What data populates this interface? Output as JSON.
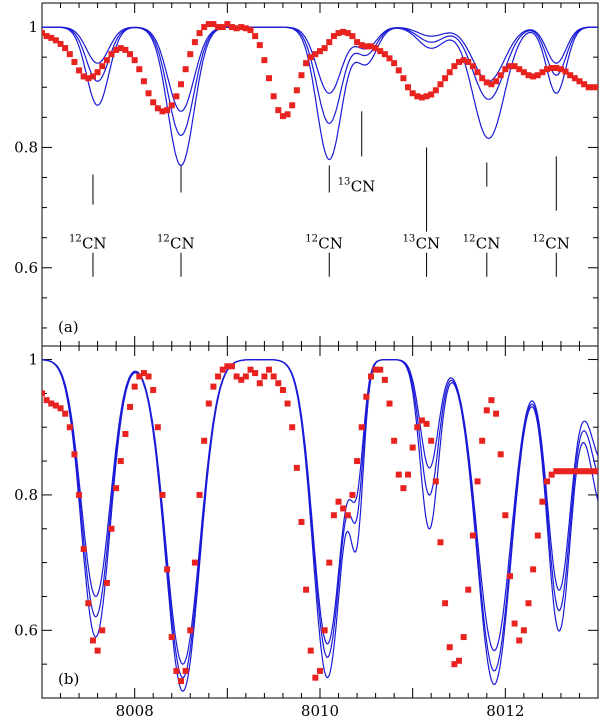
{
  "chart_data": [
    {
      "type": "line",
      "panel_label": "(a)",
      "xlim": [
        8007.0,
        8013.0
      ],
      "ylim": [
        0.47,
        1.04
      ],
      "xticks": [
        8007,
        8008,
        8009,
        8010,
        8011,
        8012,
        8013
      ],
      "xtick_labels": [],
      "yticks": [
        0.6,
        0.8,
        1.0
      ],
      "ytick_labels": [
        "0.6",
        "0.8",
        "1"
      ],
      "grid": false,
      "lines": [
        {
          "x": 8007.55,
          "y_top": 0.755,
          "y_bot": 0.705,
          "label_y": 0.64,
          "label_mass": "12",
          "label_species": "CN",
          "lower_top": 0.625,
          "lower_bot": 0.585
        },
        {
          "x": 8008.5,
          "y_top": 0.77,
          "y_bot": 0.725,
          "label_y": 0.64,
          "label_mass": "12",
          "label_species": "CN",
          "lower_top": 0.625,
          "lower_bot": 0.585
        },
        {
          "x": 8010.1,
          "y_top": 0.77,
          "y_bot": 0.725,
          "label_y": 0.64,
          "label_mass": "12",
          "label_species": "CN",
          "lower_top": 0.625,
          "lower_bot": 0.585
        },
        {
          "x": 8010.45,
          "y_top": 0.86,
          "y_bot": 0.785,
          "label_y": 0.735,
          "label_mass": "13",
          "label_species": "CN",
          "lower_top": null,
          "lower_bot": null,
          "x_label": 8010.45
        },
        {
          "x": 8011.15,
          "y_top": 0.8,
          "y_bot": 0.66,
          "label_y": 0.64,
          "label_mass": "13",
          "label_species": "CN",
          "lower_top": 0.625,
          "lower_bot": 0.585
        },
        {
          "x": 8011.8,
          "y_top": 0.775,
          "y_bot": 0.735,
          "label_y": 0.64,
          "label_mass": "12",
          "label_species": "CN",
          "lower_top": 0.625,
          "lower_bot": 0.585
        },
        {
          "x": 8012.55,
          "y_top": 0.785,
          "y_bot": 0.695,
          "label_y": 0.64,
          "label_mass": "12",
          "label_species": "CN",
          "lower_top": 0.625,
          "lower_bot": 0.585
        }
      ],
      "model_dips": [
        {
          "x": 8007.6,
          "w": 0.17,
          "d": [
            0.06,
            0.09,
            0.13
          ]
        },
        {
          "x": 8008.5,
          "w": 0.2,
          "d": [
            0.14,
            0.18,
            0.23
          ]
        },
        {
          "x": 8010.1,
          "w": 0.19,
          "d": [
            0.11,
            0.16,
            0.22
          ]
        },
        {
          "x": 8010.5,
          "w": 0.16,
          "d": [
            0.035,
            0.045,
            0.06
          ]
        },
        {
          "x": 8011.2,
          "w": 0.2,
          "d": [
            0.015,
            0.025,
            0.035
          ]
        },
        {
          "x": 8011.82,
          "w": 0.24,
          "d": [
            0.09,
            0.12,
            0.185
          ]
        },
        {
          "x": 8012.55,
          "w": 0.15,
          "d": [
            0.06,
            0.08,
            0.11
          ]
        }
      ],
      "model_baseline": 1.0,
      "obs": {
        "x": [
          8007.0,
          8007.05,
          8007.1,
          8007.15,
          8007.2,
          8007.25,
          8007.3,
          8007.35,
          8007.4,
          8007.45,
          8007.5,
          8007.55,
          8007.6,
          8007.65,
          8007.7,
          8007.75,
          8007.8,
          8007.85,
          8007.9,
          8007.95,
          8008.0,
          8008.05,
          8008.1,
          8008.15,
          8008.2,
          8008.25,
          8008.3,
          8008.35,
          8008.4,
          8008.45,
          8008.5,
          8008.55,
          8008.6,
          8008.65,
          8008.7,
          8008.75,
          8008.8,
          8008.85,
          8008.9,
          8008.95,
          8009.0,
          8009.05,
          8009.1,
          8009.15,
          8009.2,
          8009.25,
          8009.3,
          8009.35,
          8009.4,
          8009.45,
          8009.5,
          8009.55,
          8009.6,
          8009.65,
          8009.7,
          8009.75,
          8009.8,
          8009.85,
          8009.9,
          8009.95,
          8010.0,
          8010.05,
          8010.1,
          8010.15,
          8010.2,
          8010.25,
          8010.3,
          8010.35,
          8010.4,
          8010.45,
          8010.5,
          8010.55,
          8010.6,
          8010.65,
          8010.7,
          8010.75,
          8010.8,
          8010.85,
          8010.9,
          8010.95,
          8011.0,
          8011.05,
          8011.1,
          8011.15,
          8011.2,
          8011.25,
          8011.3,
          8011.35,
          8011.4,
          8011.45,
          8011.5,
          8011.55,
          8011.6,
          8011.65,
          8011.7,
          8011.75,
          8011.8,
          8011.85,
          8011.9,
          8011.95,
          8012.0,
          8012.05,
          8012.1,
          8012.15,
          8012.2,
          8012.25,
          8012.3,
          8012.35,
          8012.4,
          8012.45,
          8012.5,
          8012.55,
          8012.6,
          8012.65,
          8012.7,
          8012.75,
          8012.8,
          8012.85,
          8012.9,
          8012.95,
          8013.0
        ],
        "y": [
          0.99,
          0.985,
          0.982,
          0.978,
          0.972,
          0.965,
          0.955,
          0.942,
          0.928,
          0.918,
          0.915,
          0.918,
          0.925,
          0.935,
          0.945,
          0.955,
          0.962,
          0.965,
          0.962,
          0.955,
          0.945,
          0.93,
          0.91,
          0.89,
          0.875,
          0.865,
          0.86,
          0.862,
          0.87,
          0.885,
          0.905,
          0.93,
          0.955,
          0.975,
          0.99,
          1.0,
          1.005,
          1.005,
          1.0,
          1.0,
          1.005,
          1.0,
          0.998,
          1.0,
          0.998,
          0.995,
          0.985,
          0.97,
          0.945,
          0.915,
          0.885,
          0.862,
          0.852,
          0.855,
          0.87,
          0.895,
          0.92,
          0.94,
          0.95,
          0.955,
          0.96,
          0.965,
          0.975,
          0.985,
          0.99,
          0.992,
          0.99,
          0.985,
          0.975,
          0.97,
          0.968,
          0.968,
          0.965,
          0.96,
          0.955,
          0.948,
          0.94,
          0.928,
          0.915,
          0.9,
          0.89,
          0.885,
          0.883,
          0.885,
          0.888,
          0.895,
          0.905,
          0.915,
          0.925,
          0.935,
          0.942,
          0.945,
          0.942,
          0.935,
          0.925,
          0.915,
          0.908,
          0.905,
          0.91,
          0.92,
          0.93,
          0.935,
          0.935,
          0.93,
          0.925,
          0.92,
          0.918,
          0.92,
          0.925,
          0.93,
          0.932,
          0.932,
          0.93,
          0.926,
          0.92,
          0.915,
          0.91,
          0.905,
          0.9,
          0.9,
          0.9
        ]
      }
    },
    {
      "type": "line",
      "panel_label": "(b)",
      "xlim": [
        8007.0,
        8013.0
      ],
      "ylim": [
        0.5,
        1.02
      ],
      "xticks": [
        8007,
        8008,
        8009,
        8010,
        8011,
        8012,
        8013
      ],
      "xtick_labels": [
        "8008",
        "8010",
        "8012"
      ],
      "xtick_label_values": [
        8008,
        8010,
        8012
      ],
      "yticks": [
        0.6,
        0.8,
        1.0
      ],
      "ytick_labels": [
        "0.6",
        "0.8",
        "1"
      ],
      "grid": false,
      "model_dips": [
        {
          "x": 8007.58,
          "w": 0.22,
          "d": [
            0.35,
            0.38,
            0.41
          ]
        },
        {
          "x": 8008.52,
          "w": 0.26,
          "d": [
            0.45,
            0.47,
            0.49
          ]
        },
        {
          "x": 8010.08,
          "w": 0.22,
          "d": [
            0.42,
            0.44,
            0.47
          ]
        },
        {
          "x": 8010.4,
          "w": 0.1,
          "d": [
            0.15,
            0.18,
            0.22
          ]
        },
        {
          "x": 8011.18,
          "w": 0.14,
          "d": [
            0.16,
            0.2,
            0.25
          ]
        },
        {
          "x": 8011.88,
          "w": 0.26,
          "d": [
            0.43,
            0.46,
            0.48
          ]
        },
        {
          "x": 8012.58,
          "w": 0.18,
          "d": [
            0.34,
            0.37,
            0.4
          ]
        },
        {
          "x": 8013.05,
          "w": 0.2,
          "d": [
            0.15,
            0.18,
            0.22
          ]
        }
      ],
      "model_baseline": 1.0,
      "obs": {
        "x": [
          8007.0,
          8007.05,
          8007.1,
          8007.15,
          8007.2,
          8007.25,
          8007.3,
          8007.35,
          8007.4,
          8007.45,
          8007.5,
          8007.55,
          8007.6,
          8007.65,
          8007.7,
          8007.75,
          8007.8,
          8007.85,
          8007.9,
          8007.95,
          8008.0,
          8008.05,
          8008.1,
          8008.15,
          8008.2,
          8008.25,
          8008.3,
          8008.35,
          8008.4,
          8008.45,
          8008.5,
          8008.55,
          8008.6,
          8008.65,
          8008.7,
          8008.75,
          8008.8,
          8008.85,
          8008.9,
          8008.95,
          8009.0,
          8009.05,
          8009.1,
          8009.15,
          8009.2,
          8009.25,
          8009.3,
          8009.35,
          8009.4,
          8009.45,
          8009.5,
          8009.55,
          8009.6,
          8009.65,
          8009.7,
          8009.75,
          8009.8,
          8009.85,
          8009.9,
          8009.95,
          8010.0,
          8010.05,
          8010.1,
          8010.15,
          8010.2,
          8010.25,
          8010.3,
          8010.35,
          8010.4,
          8010.45,
          8010.5,
          8010.55,
          8010.6,
          8010.65,
          8010.7,
          8010.75,
          8010.8,
          8010.85,
          8010.9,
          8010.95,
          8011.0,
          8011.05,
          8011.1,
          8011.15,
          8011.2,
          8011.25,
          8011.3,
          8011.35,
          8011.4,
          8011.45,
          8011.5,
          8011.55,
          8011.6,
          8011.65,
          8011.7,
          8011.75,
          8011.8,
          8011.85,
          8011.9,
          8011.95,
          8012.0,
          8012.05,
          8012.1,
          8012.15,
          8012.2,
          8012.25,
          8012.3,
          8012.35,
          8012.4,
          8012.45,
          8012.5,
          8012.55,
          8012.6,
          8012.65,
          8012.7,
          8012.75,
          8012.8,
          8012.85,
          8012.9,
          8012.95,
          8013.0
        ],
        "y": [
          0.95,
          0.94,
          0.935,
          0.932,
          0.928,
          0.92,
          0.9,
          0.86,
          0.8,
          0.72,
          0.64,
          0.585,
          0.57,
          0.6,
          0.67,
          0.75,
          0.81,
          0.85,
          0.89,
          0.93,
          0.96,
          0.975,
          0.98,
          0.975,
          0.955,
          0.9,
          0.8,
          0.69,
          0.59,
          0.54,
          0.525,
          0.54,
          0.6,
          0.7,
          0.8,
          0.88,
          0.935,
          0.96,
          0.975,
          0.985,
          0.99,
          0.99,
          0.975,
          0.97,
          0.975,
          0.985,
          0.98,
          0.965,
          0.975,
          0.985,
          0.975,
          0.965,
          0.955,
          0.935,
          0.9,
          0.84,
          0.76,
          0.66,
          0.57,
          0.53,
          0.54,
          0.6,
          0.7,
          0.77,
          0.79,
          0.78,
          0.77,
          0.8,
          0.85,
          0.9,
          0.945,
          0.975,
          0.985,
          0.985,
          0.97,
          0.935,
          0.88,
          0.83,
          0.81,
          0.83,
          0.87,
          0.9,
          0.91,
          0.905,
          0.88,
          0.82,
          0.73,
          0.64,
          0.575,
          0.55,
          0.555,
          0.59,
          0.66,
          0.74,
          0.82,
          0.88,
          0.925,
          0.94,
          0.92,
          0.86,
          0.77,
          0.68,
          0.61,
          0.585,
          0.6,
          0.64,
          0.69,
          0.74,
          0.79,
          0.82,
          0.83,
          0.835,
          0.835,
          0.835,
          0.835,
          0.835,
          0.835,
          0.835,
          0.835,
          0.835,
          0.835
        ]
      }
    }
  ]
}
